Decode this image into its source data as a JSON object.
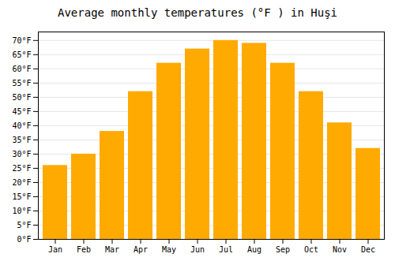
{
  "chart_data": {
    "type": "bar",
    "title": "Average monthly temperatures (°F ) in Huşi",
    "categories": [
      "Jan",
      "Feb",
      "Mar",
      "Apr",
      "May",
      "Jun",
      "Jul",
      "Aug",
      "Sep",
      "Oct",
      "Nov",
      "Dec"
    ],
    "values": [
      26,
      30,
      38,
      52,
      62,
      67,
      70,
      69,
      62,
      52,
      41,
      32
    ],
    "color": "#FFAA00",
    "ylim": [
      0,
      73
    ],
    "yticks": [
      {
        "value": 0,
        "label": "0°F"
      },
      {
        "value": 5,
        "label": "5°F"
      },
      {
        "value": 10,
        "label": "10°F"
      },
      {
        "value": 15,
        "label": "15°F"
      },
      {
        "value": 20,
        "label": "20°F"
      },
      {
        "value": 25,
        "label": "25°F"
      },
      {
        "value": 30,
        "label": "30°F"
      },
      {
        "value": 35,
        "label": "35°F"
      },
      {
        "value": 40,
        "label": "40°F"
      },
      {
        "value": 45,
        "label": "45°F"
      },
      {
        "value": 50,
        "label": "50°F"
      },
      {
        "value": 55,
        "label": "55°F"
      },
      {
        "value": 60,
        "label": "60°F"
      },
      {
        "value": 65,
        "label": "65°F"
      },
      {
        "value": 70,
        "label": "70°F"
      }
    ],
    "grid": true
  }
}
